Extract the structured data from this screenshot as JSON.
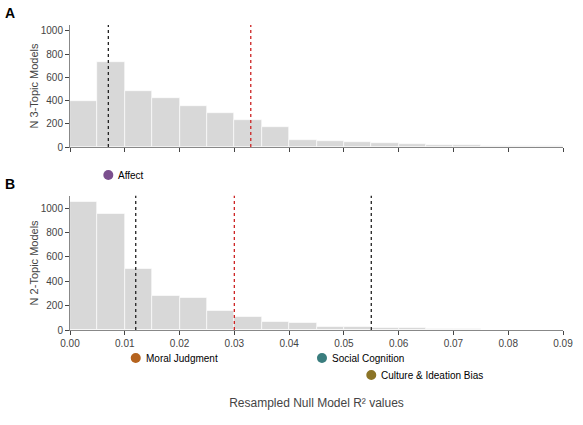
{
  "chart_data": [
    {
      "type": "histogram",
      "title": "A",
      "ylabel": "N 3-Topic Models",
      "bins": [
        0.0,
        0.005,
        0.01,
        0.015,
        0.02,
        0.025,
        0.03,
        0.035,
        0.04,
        0.045,
        0.05,
        0.055,
        0.06,
        0.065,
        0.07,
        0.075,
        0.08,
        0.085,
        0.09
      ],
      "values": [
        400,
        730,
        480,
        420,
        350,
        290,
        230,
        170,
        60,
        50,
        45,
        35,
        25,
        20,
        15,
        12,
        8,
        5
      ],
      "color": "#d8d8d8",
      "xlim": [
        0.0,
        0.09
      ],
      "xticks": [
        0,
        0.01,
        0.02,
        0.03,
        0.04,
        0.05,
        0.06,
        0.07,
        0.08,
        0.09
      ],
      "ylim": [
        0,
        1050
      ],
      "yticks": [
        0,
        200,
        400,
        600,
        800,
        1000
      ],
      "grid": false,
      "tick_labels": "y",
      "vlines": [
        {
          "x": 0.007,
          "color": "#222222"
        },
        {
          "x": 0.033,
          "color": "#cc2222"
        }
      ],
      "annotations": [
        {
          "text": "Affect",
          "x": 0.007,
          "color": "#7b4f8e"
        }
      ]
    },
    {
      "type": "histogram",
      "title": "B",
      "ylabel": "N 2-Topic Models",
      "xlabel": "Resampled Null Model R² values",
      "bins": [
        0.0,
        0.005,
        0.01,
        0.015,
        0.02,
        0.025,
        0.03,
        0.035,
        0.04,
        0.045,
        0.05,
        0.055,
        0.06,
        0.065,
        0.07,
        0.075,
        0.08,
        0.085,
        0.09
      ],
      "values": [
        1050,
        950,
        500,
        280,
        260,
        160,
        110,
        65,
        55,
        30,
        25,
        20,
        15,
        10,
        8,
        5,
        3,
        2
      ],
      "color": "#d8d8d8",
      "xlim": [
        0.0,
        0.09
      ],
      "xticks": [
        {
          "value": 0,
          "label": "0.00"
        },
        0.01,
        0.02,
        0.03,
        0.04,
        0.05,
        0.06,
        0.07,
        0.08,
        0.09
      ],
      "ylim": [
        0,
        1100
      ],
      "yticks": [
        0,
        200,
        400,
        600,
        800,
        1000
      ],
      "grid": false,
      "vlines": [
        {
          "x": 0.012,
          "color": "#222222"
        },
        {
          "x": 0.055,
          "color": "#222222"
        },
        {
          "x": 0.03,
          "color": "#cc2222"
        }
      ],
      "annotations": [
        {
          "text": "Moral Judgment",
          "x": 0.012,
          "color": "#b5631e"
        },
        {
          "text": "Social Cognition",
          "x": 0.046,
          "color": "#3a7d7e"
        },
        {
          "text": "Culture & Ideation Bias",
          "x": 0.055,
          "color": "#8b7427"
        }
      ]
    }
  ]
}
